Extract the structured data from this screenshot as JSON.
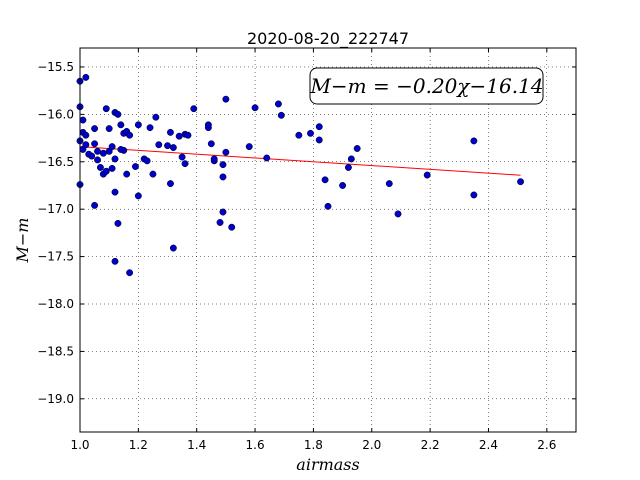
{
  "chart_data": {
    "type": "scatter",
    "title": "2020-08-20_222747",
    "xlabel": "airmass",
    "ylabel": "M−m",
    "xlim": [
      1.0,
      2.7
    ],
    "ylim": [
      -15.3,
      -19.35
    ],
    "x_ticks": [
      1.0,
      1.2,
      1.4,
      1.6,
      1.8,
      2.0,
      2.2,
      2.4,
      2.6
    ],
    "x_tick_labels": [
      "1.0",
      "1.2",
      "1.4",
      "1.6",
      "1.8",
      "2.0",
      "2.2",
      "2.4",
      "2.6"
    ],
    "y_ticks": [
      -15.5,
      -16.0,
      -16.5,
      -17.0,
      -17.5,
      -18.0,
      -18.5,
      -19.0
    ],
    "y_tick_labels": [
      "−15.5",
      "−16.0",
      "−16.5",
      "−17.0",
      "−17.5",
      "−18.0",
      "−18.5",
      "−19.0"
    ],
    "grid": true,
    "annotation": "M−m = −0.20χ−16.14",
    "fit": {
      "slope": -0.2,
      "intercept": -16.14,
      "x_range": [
        1.0,
        2.51
      ],
      "color": "#ff0000"
    },
    "point_color": "#0000cc",
    "points": [
      [
        1.0,
        -15.65
      ],
      [
        1.02,
        -15.61
      ],
      [
        1.0,
        -15.92
      ],
      [
        1.01,
        -16.06
      ],
      [
        1.01,
        -16.19
      ],
      [
        1.02,
        -16.22
      ],
      [
        1.0,
        -16.28
      ],
      [
        1.02,
        -16.32
      ],
      [
        1.01,
        -16.37
      ],
      [
        1.03,
        -16.42
      ],
      [
        1.04,
        -16.44
      ],
      [
        1.0,
        -16.74
      ],
      [
        1.05,
        -16.15
      ],
      [
        1.05,
        -16.31
      ],
      [
        1.06,
        -16.39
      ],
      [
        1.06,
        -16.48
      ],
      [
        1.07,
        -16.56
      ],
      [
        1.08,
        -16.63
      ],
      [
        1.09,
        -16.6
      ],
      [
        1.08,
        -16.41
      ],
      [
        1.1,
        -16.39
      ],
      [
        1.09,
        -15.94
      ],
      [
        1.1,
        -16.15
      ],
      [
        1.11,
        -16.34
      ],
      [
        1.11,
        -16.57
      ],
      [
        1.12,
        -16.47
      ],
      [
        1.12,
        -15.98
      ],
      [
        1.13,
        -16.0
      ],
      [
        1.14,
        -16.11
      ],
      [
        1.15,
        -16.2
      ],
      [
        1.16,
        -16.18
      ],
      [
        1.17,
        -16.22
      ],
      [
        1.15,
        -16.38
      ],
      [
        1.14,
        -16.37
      ],
      [
        1.16,
        -16.63
      ],
      [
        1.12,
        -16.82
      ],
      [
        1.13,
        -17.15
      ],
      [
        1.12,
        -17.55
      ],
      [
        1.17,
        -17.67
      ],
      [
        1.05,
        -16.96
      ],
      [
        1.19,
        -16.55
      ],
      [
        1.2,
        -16.86
      ],
      [
        1.2,
        -16.11
      ],
      [
        1.22,
        -16.47
      ],
      [
        1.24,
        -16.14
      ],
      [
        1.23,
        -16.49
      ],
      [
        1.25,
        -16.63
      ],
      [
        1.26,
        -16.03
      ],
      [
        1.27,
        -16.32
      ],
      [
        1.3,
        -16.33
      ],
      [
        1.31,
        -16.19
      ],
      [
        1.32,
        -16.35
      ],
      [
        1.34,
        -16.23
      ],
      [
        1.35,
        -16.45
      ],
      [
        1.36,
        -16.21
      ],
      [
        1.36,
        -16.52
      ],
      [
        1.37,
        -16.22
      ],
      [
        1.31,
        -16.73
      ],
      [
        1.32,
        -17.41
      ],
      [
        1.39,
        -15.94
      ],
      [
        1.44,
        -16.14
      ],
      [
        1.44,
        -16.11
      ],
      [
        1.45,
        -16.31
      ],
      [
        1.46,
        -16.49
      ],
      [
        1.46,
        -16.47
      ],
      [
        1.49,
        -16.53
      ],
      [
        1.49,
        -16.66
      ],
      [
        1.5,
        -15.84
      ],
      [
        1.5,
        -16.4
      ],
      [
        1.49,
        -17.03
      ],
      [
        1.48,
        -17.14
      ],
      [
        1.52,
        -17.19
      ],
      [
        1.58,
        -16.34
      ],
      [
        1.6,
        -15.93
      ],
      [
        1.64,
        -16.46
      ],
      [
        1.68,
        -15.89
      ],
      [
        1.69,
        -16.01
      ],
      [
        1.75,
        -16.22
      ],
      [
        1.79,
        -16.2
      ],
      [
        1.82,
        -16.13
      ],
      [
        1.82,
        -16.27
      ],
      [
        1.84,
        -16.69
      ],
      [
        1.85,
        -16.97
      ],
      [
        1.9,
        -16.75
      ],
      [
        1.92,
        -16.56
      ],
      [
        1.93,
        -16.47
      ],
      [
        1.95,
        -16.36
      ],
      [
        2.06,
        -16.73
      ],
      [
        2.09,
        -17.05
      ],
      [
        2.19,
        -16.64
      ],
      [
        2.35,
        -16.28
      ],
      [
        2.35,
        -16.85
      ],
      [
        2.51,
        -16.71
      ]
    ]
  }
}
